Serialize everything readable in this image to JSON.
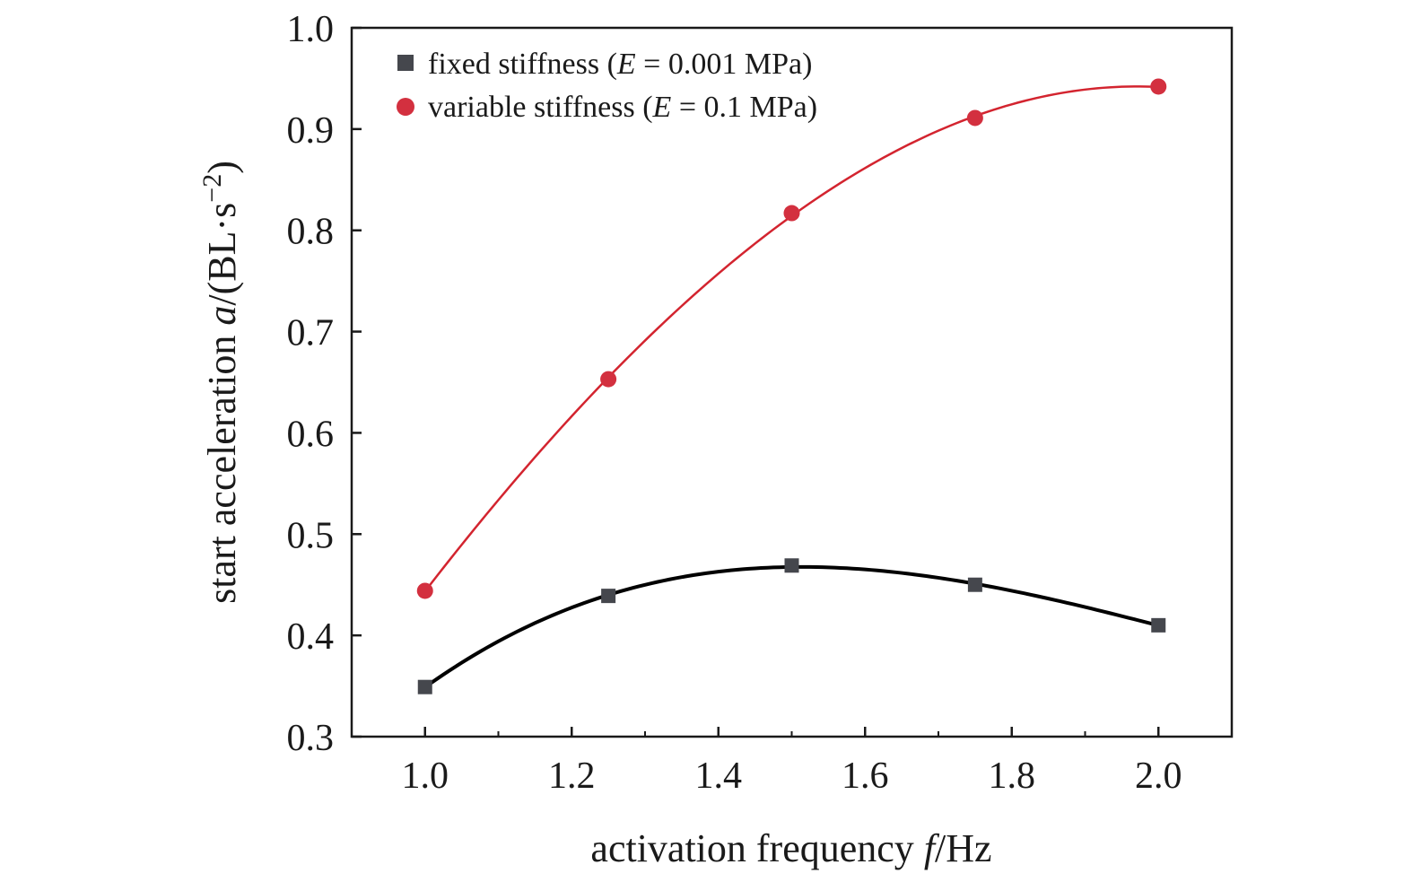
{
  "chart_data": {
    "type": "line",
    "xlabel": {
      "prefix": "activation frequency ",
      "var": "f",
      "suffix": "/Hz"
    },
    "ylabel": {
      "prefix": "start acceleration ",
      "var": "a",
      "suffix": "/(BL·s",
      "sup": "−2",
      "close": ")"
    },
    "xlim": [
      0.9,
      2.1
    ],
    "ylim": [
      0.3,
      1.0
    ],
    "x_ticks": [
      1.0,
      1.2,
      1.4,
      1.6,
      1.8,
      2.0
    ],
    "x_tick_labels": [
      "1.0",
      "1.2",
      "1.4",
      "1.6",
      "1.8",
      "2.0"
    ],
    "y_ticks": [
      0.3,
      0.4,
      0.5,
      0.6,
      0.7,
      0.8,
      0.9,
      1.0
    ],
    "y_tick_labels": [
      "0.3",
      "0.4",
      "0.5",
      "0.6",
      "0.7",
      "0.8",
      "0.9",
      "1.0"
    ],
    "legend_position": "top-left",
    "grid": false,
    "series": [
      {
        "name": "fixed stiffness (E = 0.001 MPa)",
        "legend": {
          "pre": "fixed stiffness (",
          "var": "E",
          "post": " = 0.001 MPa)"
        },
        "marker": "square",
        "marker_color": "#45474d",
        "line_color": "#000000",
        "x": [
          1.0,
          1.25,
          1.5,
          1.75,
          2.0
        ],
        "y": [
          0.349,
          0.439,
          0.469,
          0.45,
          0.41
        ]
      },
      {
        "name": "variable stiffness (E = 0.1 MPa)",
        "legend": {
          "pre": "variable stiffness (",
          "var": "E",
          "post": " = 0.1 MPa)"
        },
        "marker": "circle",
        "marker_color": "#d3303f",
        "line_color": "#d3242f",
        "x": [
          1.0,
          1.25,
          1.5,
          1.75,
          2.0
        ],
        "y": [
          0.444,
          0.653,
          0.817,
          0.911,
          0.942
        ]
      }
    ]
  }
}
